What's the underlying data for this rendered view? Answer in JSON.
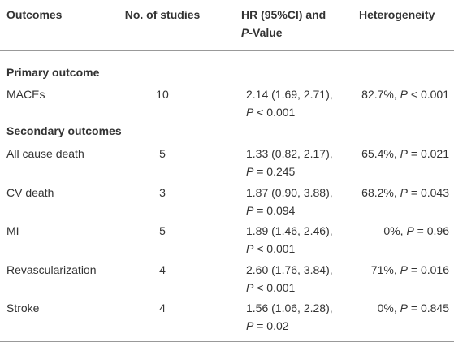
{
  "header": {
    "outcomes": "Outcomes",
    "studies": "No. of studies",
    "hr": {
      "line1": "HR (95%CI) and",
      "p_symbol": "P",
      "suffix": "-Value"
    },
    "heterogeneity": "Heterogeneity"
  },
  "sections": [
    {
      "title": "Primary outcome",
      "rows": [
        {
          "outcome": "MACEs",
          "studies": 10,
          "hr": {
            "ci": "2.14 (1.69, 2.71),",
            "p_symbol": "P",
            "p": "< 0.001"
          },
          "heterogeneity": {
            "i2": "82.7%,",
            "p_symbol": "P",
            "p": "< 0.001"
          }
        }
      ]
    },
    {
      "title": "Secondary outcomes",
      "rows": [
        {
          "outcome": "All cause death",
          "studies": 5,
          "hr": {
            "ci": "1.33 (0.82, 2.17),",
            "p_symbol": "P",
            "p": "= 0.245"
          },
          "heterogeneity": {
            "i2": "65.4%,",
            "p_symbol": "P",
            "p": "= 0.021"
          }
        },
        {
          "outcome": "CV death",
          "studies": 3,
          "hr": {
            "ci": "1.87 (0.90, 3.88),",
            "p_symbol": "P",
            "p": "= 0.094"
          },
          "heterogeneity": {
            "i2": "68.2%,",
            "p_symbol": "P",
            "p": "= 0.043"
          }
        },
        {
          "outcome": "MI",
          "studies": 5,
          "hr": {
            "ci": "1.89 (1.46, 2.46),",
            "p_symbol": "P",
            "p": "< 0.001"
          },
          "heterogeneity": {
            "i2": "0%,",
            "p_symbol": "P",
            "p": "= 0.96"
          }
        },
        {
          "outcome": "Revascularization",
          "studies": 4,
          "hr": {
            "ci": "2.60 (1.76, 3.84),",
            "p_symbol": "P",
            "p": "< 0.001"
          },
          "heterogeneity": {
            "i2": "71%,",
            "p_symbol": "P",
            "p": "= 0.016"
          }
        },
        {
          "outcome": "Stroke",
          "studies": 4,
          "hr": {
            "ci": "1.56 (1.06, 2.28),",
            "p_symbol": "P",
            "p": "= 0.02"
          },
          "heterogeneity": {
            "i2": "0%,",
            "p_symbol": "P",
            "p": "= 0.845"
          }
        }
      ]
    }
  ]
}
